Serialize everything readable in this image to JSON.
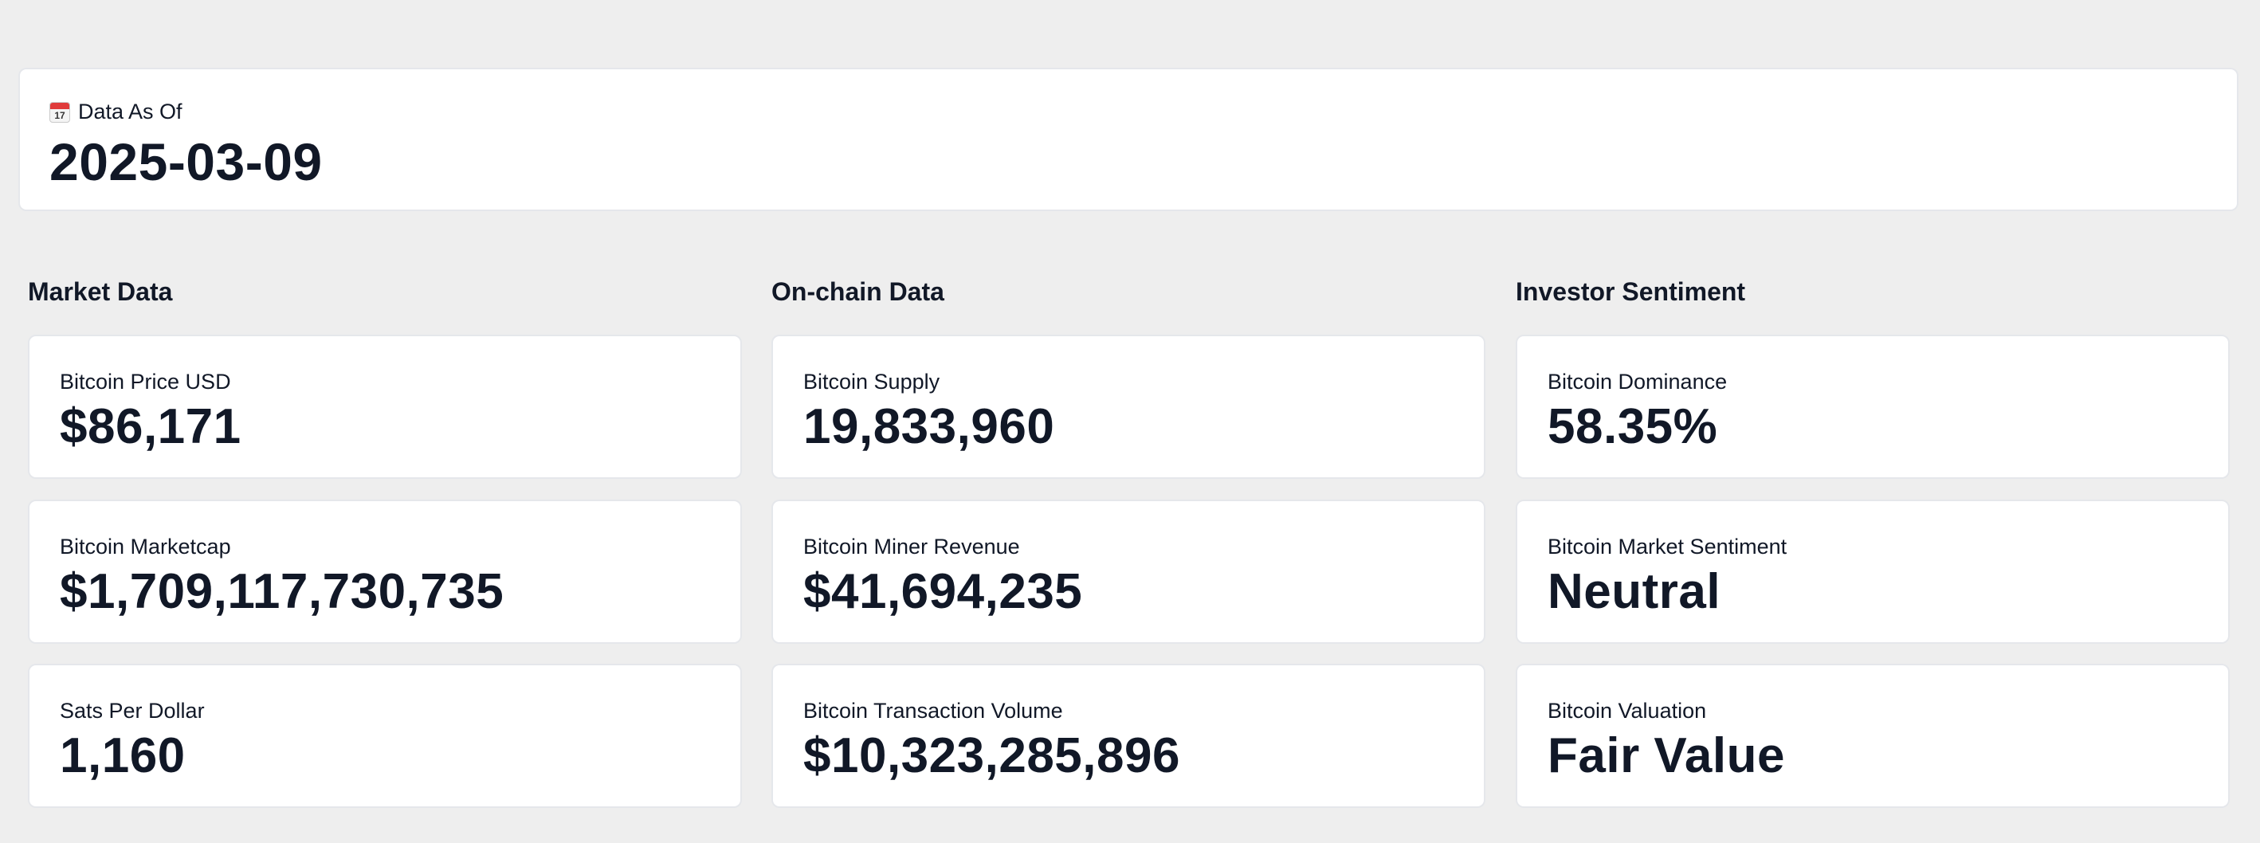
{
  "date_card": {
    "icon": "calendar-icon",
    "icon_number": "17",
    "label": "Data As Of",
    "value": "2025-03-09"
  },
  "sections": [
    {
      "title": "Market Data",
      "cards": [
        {
          "label": "Bitcoin Price USD",
          "value": "$86,171"
        },
        {
          "label": "Bitcoin Marketcap",
          "value": "$1,709,117,730,735"
        },
        {
          "label": "Sats Per Dollar",
          "value": "1,160"
        }
      ]
    },
    {
      "title": "On-chain Data",
      "cards": [
        {
          "label": "Bitcoin Supply",
          "value": "19,833,960"
        },
        {
          "label": "Bitcoin Miner Revenue",
          "value": "$41,694,235"
        },
        {
          "label": "Bitcoin Transaction Volume",
          "value": "$10,323,285,896"
        }
      ]
    },
    {
      "title": "Investor Sentiment",
      "cards": [
        {
          "label": "Bitcoin Dominance",
          "value": "58.35%"
        },
        {
          "label": "Bitcoin Market Sentiment",
          "value": "Neutral"
        },
        {
          "label": "Bitcoin Valuation",
          "value": "Fair Value"
        }
      ]
    }
  ]
}
